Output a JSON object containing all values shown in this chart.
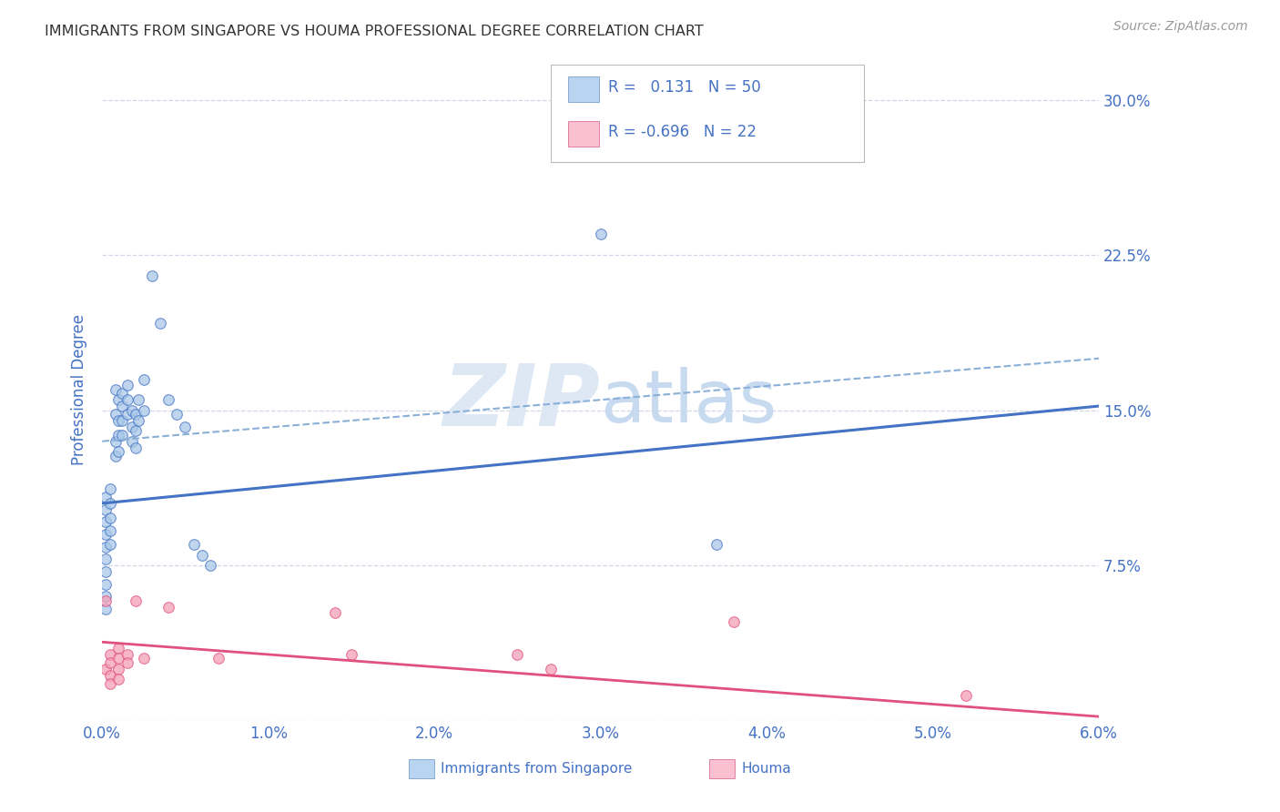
{
  "title": "IMMIGRANTS FROM SINGAPORE VS HOUMA PROFESSIONAL DEGREE CORRELATION CHART",
  "source": "Source: ZipAtlas.com",
  "ylabel": "Professional Degree",
  "x_tick_labels": [
    "0.0%",
    "1.0%",
    "2.0%",
    "3.0%",
    "4.0%",
    "5.0%",
    "6.0%"
  ],
  "x_tick_values": [
    0.0,
    1.0,
    2.0,
    3.0,
    4.0,
    5.0,
    6.0
  ],
  "y_tick_labels_right": [
    "30.0%",
    "22.5%",
    "15.0%",
    "7.5%"
  ],
  "y_tick_values_right": [
    30.0,
    22.5,
    15.0,
    7.5
  ],
  "xlim": [
    0.0,
    6.0
  ],
  "ylim": [
    0.0,
    32.0
  ],
  "singapore_dots": [
    [
      0.02,
      10.8
    ],
    [
      0.02,
      10.2
    ],
    [
      0.02,
      9.6
    ],
    [
      0.02,
      9.0
    ],
    [
      0.02,
      8.4
    ],
    [
      0.02,
      7.8
    ],
    [
      0.02,
      7.2
    ],
    [
      0.02,
      6.6
    ],
    [
      0.02,
      6.0
    ],
    [
      0.02,
      5.4
    ],
    [
      0.05,
      11.2
    ],
    [
      0.05,
      10.5
    ],
    [
      0.05,
      9.8
    ],
    [
      0.05,
      9.2
    ],
    [
      0.05,
      8.5
    ],
    [
      0.08,
      16.0
    ],
    [
      0.08,
      14.8
    ],
    [
      0.08,
      13.5
    ],
    [
      0.08,
      12.8
    ],
    [
      0.1,
      15.5
    ],
    [
      0.1,
      14.5
    ],
    [
      0.1,
      13.8
    ],
    [
      0.1,
      13.0
    ],
    [
      0.12,
      15.8
    ],
    [
      0.12,
      15.2
    ],
    [
      0.12,
      14.5
    ],
    [
      0.12,
      13.8
    ],
    [
      0.15,
      16.2
    ],
    [
      0.15,
      15.5
    ],
    [
      0.15,
      14.8
    ],
    [
      0.18,
      15.0
    ],
    [
      0.18,
      14.2
    ],
    [
      0.18,
      13.5
    ],
    [
      0.2,
      14.8
    ],
    [
      0.2,
      14.0
    ],
    [
      0.2,
      13.2
    ],
    [
      0.22,
      15.5
    ],
    [
      0.22,
      14.5
    ],
    [
      0.25,
      16.5
    ],
    [
      0.25,
      15.0
    ],
    [
      0.3,
      21.5
    ],
    [
      0.35,
      19.2
    ],
    [
      0.4,
      15.5
    ],
    [
      0.45,
      14.8
    ],
    [
      0.5,
      14.2
    ],
    [
      0.55,
      8.5
    ],
    [
      0.6,
      8.0
    ],
    [
      0.65,
      7.5
    ],
    [
      3.0,
      23.5
    ],
    [
      3.7,
      8.5
    ]
  ],
  "houma_dots": [
    [
      0.02,
      5.8
    ],
    [
      0.02,
      2.5
    ],
    [
      0.05,
      3.2
    ],
    [
      0.05,
      2.8
    ],
    [
      0.05,
      2.2
    ],
    [
      0.05,
      1.8
    ],
    [
      0.1,
      3.5
    ],
    [
      0.1,
      3.0
    ],
    [
      0.1,
      2.5
    ],
    [
      0.1,
      2.0
    ],
    [
      0.15,
      3.2
    ],
    [
      0.15,
      2.8
    ],
    [
      0.2,
      5.8
    ],
    [
      0.25,
      3.0
    ],
    [
      0.4,
      5.5
    ],
    [
      0.7,
      3.0
    ],
    [
      1.4,
      5.2
    ],
    [
      1.5,
      3.2
    ],
    [
      2.5,
      3.2
    ],
    [
      2.7,
      2.5
    ],
    [
      3.8,
      4.8
    ],
    [
      5.2,
      1.2
    ]
  ],
  "singapore_line": {
    "x0": 0.0,
    "y0": 10.5,
    "x1": 6.0,
    "y1": 15.2
  },
  "ci_line": {
    "x0": 0.0,
    "y0": 13.5,
    "x1": 6.0,
    "y1": 17.5
  },
  "houma_line": {
    "x0": 0.0,
    "y0": 3.8,
    "x1": 6.0,
    "y1": 0.2
  },
  "singapore_line_color": "#4472c4",
  "singapore_dot_color": "#a8c8e8",
  "singapore_dot_edge": "#4472c4",
  "houma_line_color": "#e05080",
  "houma_dot_color": "#f4a0b8",
  "houma_dot_edge": "#e05080",
  "ci_line_color": "#8ab0d8",
  "background_color": "#ffffff",
  "grid_color": "#d0d8e8",
  "title_color": "#333333",
  "axis_label_color": "#4472c4",
  "legend_text_color": "#4472c4",
  "watermark_color": "#dde8f4",
  "legend_sg_color": "#b8d4f0",
  "legend_sg_edge": "#8aaad0",
  "legend_hm_color": "#f8c0d0",
  "legend_hm_edge": "#e080a0"
}
